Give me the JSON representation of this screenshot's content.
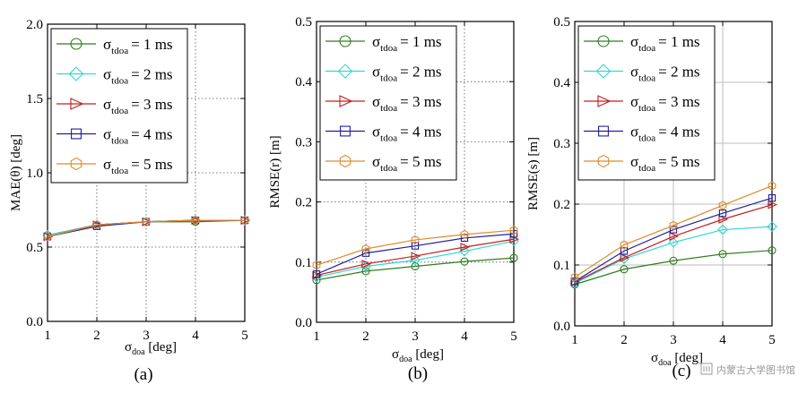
{
  "watermark": "内蒙古大学图书馆",
  "legend": {
    "sigma": "σ",
    "sub": "tdoa",
    "entries": [
      "= 1 ms",
      "= 2 ms",
      "= 3 ms",
      "= 4 ms",
      "= 5 ms"
    ]
  },
  "colors": [
    "#2f7d1f",
    "#33d6d6",
    "#c02020",
    "#1f1f9e",
    "#e08a28"
  ],
  "markers": [
    "circle",
    "diamond",
    "triangle-right",
    "square",
    "hexagon"
  ],
  "chart_data": [
    {
      "type": "line",
      "sublabel": "(a)",
      "ylabel_text": "MAE(θ) [deg]",
      "xlabel_sigma": "σ",
      "xlabel_sub": "doa",
      "xlabel_rest": " [deg]",
      "x": [
        1,
        2,
        3,
        4,
        5
      ],
      "xlim": [
        1,
        5
      ],
      "ylim": [
        0,
        2
      ],
      "yticks": [
        "0.0",
        "0.5",
        "1.0",
        "1.5",
        "2.0"
      ],
      "ytick_values": [
        0,
        0.5,
        1.0,
        1.5,
        2.0
      ],
      "xticks": [
        "1",
        "2",
        "3",
        "4",
        "5"
      ],
      "grid": "dotted",
      "legend_position": "top-left",
      "series": [
        {
          "values": [
            0.58,
            0.65,
            0.67,
            0.67,
            0.68
          ]
        },
        {
          "values": [
            0.58,
            0.65,
            0.67,
            0.68,
            0.68
          ]
        },
        {
          "values": [
            0.57,
            0.65,
            0.67,
            0.68,
            0.68
          ]
        },
        {
          "values": [
            0.57,
            0.64,
            0.67,
            0.68,
            0.68
          ]
        },
        {
          "values": [
            0.57,
            0.65,
            0.67,
            0.68,
            0.68
          ]
        }
      ]
    },
    {
      "type": "line",
      "sublabel": "(b)",
      "ylabel_text": "RMSE(r) [m]",
      "xlabel_sigma": "σ",
      "xlabel_sub": "doa",
      "xlabel_rest": " [deg]",
      "x": [
        1,
        2,
        3,
        4,
        5
      ],
      "xlim": [
        1,
        5
      ],
      "ylim": [
        0,
        0.5
      ],
      "yticks": [
        "0.0",
        "0.1",
        "0.2",
        "0.3",
        "0.4",
        "0.5"
      ],
      "ytick_values": [
        0,
        0.1,
        0.2,
        0.3,
        0.4,
        0.5
      ],
      "xticks": [
        "1",
        "2",
        "3",
        "4",
        "5"
      ],
      "grid": "dotted",
      "legend_position": "top-left",
      "series": [
        {
          "values": [
            0.07,
            0.085,
            0.093,
            0.101,
            0.107
          ]
        },
        {
          "values": [
            0.075,
            0.093,
            0.103,
            0.118,
            0.135
          ]
        },
        {
          "values": [
            0.078,
            0.097,
            0.11,
            0.125,
            0.138
          ]
        },
        {
          "values": [
            0.08,
            0.115,
            0.127,
            0.14,
            0.147
          ]
        },
        {
          "values": [
            0.095,
            0.122,
            0.137,
            0.146,
            0.153
          ]
        }
      ]
    },
    {
      "type": "line",
      "sublabel": "(c)",
      "ylabel_text": "RMSE(s) [m]",
      "xlabel_sigma": "σ",
      "xlabel_sub": "doa",
      "xlabel_rest": " [deg]",
      "x": [
        1,
        2,
        3,
        4,
        5
      ],
      "xlim": [
        1,
        5
      ],
      "ylim": [
        0,
        0.5
      ],
      "yticks": [
        "0.0",
        "0.1",
        "0.2",
        "0.3",
        "0.4",
        "0.5"
      ],
      "ytick_values": [
        0,
        0.1,
        0.2,
        0.3,
        0.4,
        0.5
      ],
      "xticks": [
        "1",
        "2",
        "3",
        "4",
        "5"
      ],
      "grid": "solid-gray",
      "legend_position": "top-left",
      "series": [
        {
          "values": [
            0.068,
            0.093,
            0.107,
            0.118,
            0.124
          ]
        },
        {
          "values": [
            0.07,
            0.11,
            0.137,
            0.158,
            0.163
          ]
        },
        {
          "values": [
            0.072,
            0.112,
            0.147,
            0.175,
            0.199
          ]
        },
        {
          "values": [
            0.073,
            0.123,
            0.158,
            0.185,
            0.21
          ]
        },
        {
          "values": [
            0.08,
            0.133,
            0.165,
            0.198,
            0.23
          ]
        }
      ]
    }
  ]
}
